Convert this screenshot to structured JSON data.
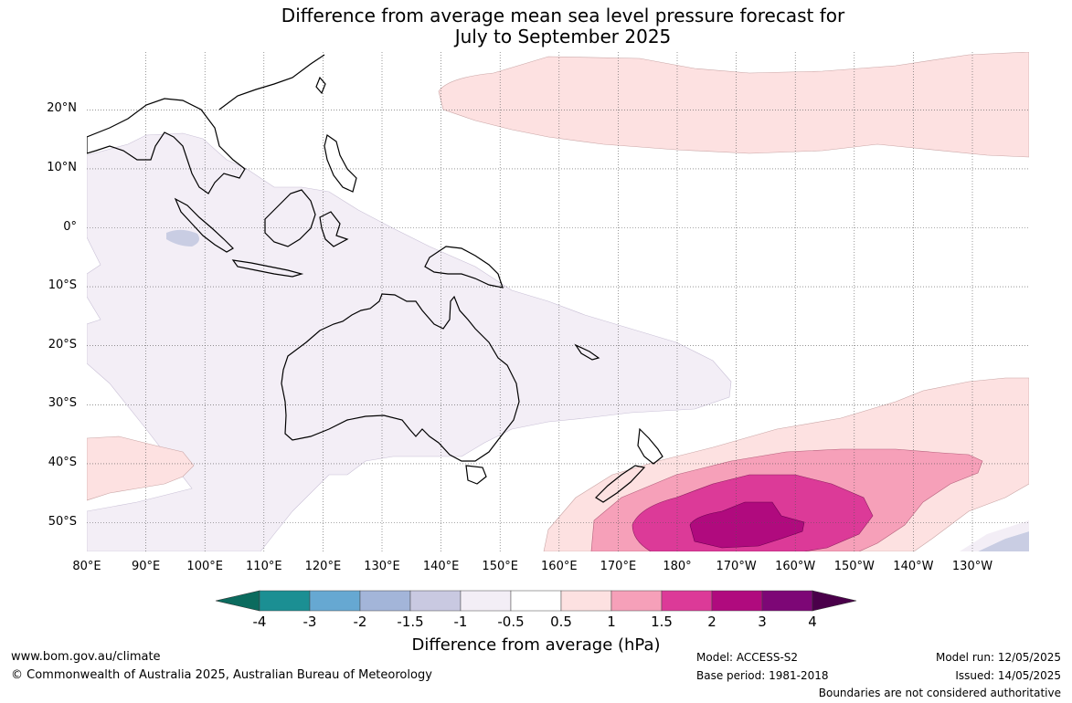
{
  "title": {
    "line1": "Difference from average mean sea level pressure forecast for",
    "line2": "July to September 2025"
  },
  "axes": {
    "lat_labels": [
      "20°N",
      "10°N",
      "0°",
      "10°S",
      "20°S",
      "30°S",
      "40°S",
      "50°S"
    ],
    "lon_labels": [
      "80°E",
      "90°E",
      "100°E",
      "110°E",
      "120°E",
      "130°E",
      "140°E",
      "150°E",
      "160°E",
      "170°E",
      "180°",
      "170°W",
      "160°W",
      "150°W",
      "140°W",
      "130°W"
    ]
  },
  "map_extent": {
    "lon_min": 80,
    "lon_max": 236,
    "lat_min": -55,
    "lat_max": 30,
    "gridlines": true
  },
  "colorbar": {
    "tick_labels": [
      "-4",
      "-3",
      "-2",
      "-1.5",
      "-1",
      "-0.5",
      "0.5",
      "1",
      "1.5",
      "2",
      "3",
      "4"
    ],
    "colors": [
      "#1b8f93",
      "#66a8d2",
      "#a3b5d9",
      "#c9c9e1",
      "#f3eef6",
      "#ffffff",
      "#fde1e1",
      "#f6a0b9",
      "#dc3a98",
      "#b00a7e",
      "#7d0776"
    ],
    "extend_low_color": "#0b6b5e",
    "extend_high_color": "#4a004a",
    "label": "Difference from average (hPa)"
  },
  "footer": {
    "website": "www.bom.gov.au/climate",
    "copyright": "© Commonwealth of Australia 2025, Australian Bureau of Meteorology",
    "model": "Model: ACCESS-S2",
    "base_period": "Base period: 1981-2018",
    "model_run": "Model run: 12/05/2025",
    "issued": "Issued: 14/05/2025",
    "disclaimer": "Boundaries are not considered authoritative"
  }
}
